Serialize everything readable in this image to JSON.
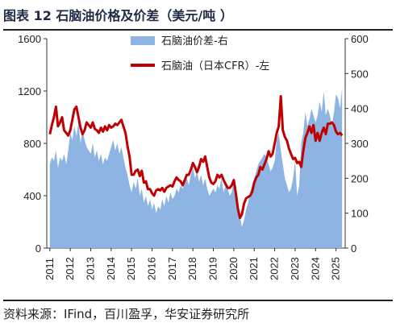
{
  "title": "图表 12 石脑油价格及价差（美元/吨 ）",
  "source": "资料来源：IFind，百川盈孚，华安证券研究所",
  "colors": {
    "price_line": "#c00000",
    "spread_area": "#8eb4e3"
  },
  "chart_data": {
    "type": "line+area",
    "x_tick_labels": [
      "2011",
      "2012",
      "2013",
      "2014",
      "2015",
      "2016",
      "2017",
      "2018",
      "2019",
      "2020",
      "2021",
      "2022",
      "2023",
      "2024",
      "2025"
    ],
    "left_axis": {
      "ticks": [
        0,
        400,
        800,
        1200,
        1600
      ],
      "range": [
        0,
        1600
      ]
    },
    "right_axis": {
      "ticks": [
        0,
        100,
        200,
        300,
        400,
        500,
        600
      ],
      "range": [
        0,
        600
      ]
    },
    "grid": false,
    "legend_position": "top-center",
    "series": [
      {
        "name": "石脑油价差-右",
        "kind": "area",
        "axis": "right",
        "x": [
          2011.0,
          2011.1,
          2011.2,
          2011.3,
          2011.4,
          2011.5,
          2011.6,
          2011.7,
          2011.8,
          2011.9,
          2012.0,
          2012.1,
          2012.2,
          2012.3,
          2012.4,
          2012.5,
          2012.6,
          2012.7,
          2012.8,
          2012.9,
          2013.0,
          2013.1,
          2013.2,
          2013.3,
          2013.4,
          2013.5,
          2013.6,
          2013.7,
          2013.8,
          2013.9,
          2014.0,
          2014.1,
          2014.2,
          2014.3,
          2014.4,
          2014.5,
          2014.6,
          2014.7,
          2014.8,
          2014.9,
          2015.0,
          2015.1,
          2015.2,
          2015.3,
          2015.4,
          2015.5,
          2015.6,
          2015.7,
          2015.8,
          2015.9,
          2016.0,
          2016.1,
          2016.2,
          2016.3,
          2016.4,
          2016.5,
          2016.6,
          2016.7,
          2016.8,
          2016.9,
          2017.0,
          2017.1,
          2017.2,
          2017.3,
          2017.4,
          2017.5,
          2017.6,
          2017.7,
          2017.8,
          2017.9,
          2018.0,
          2018.1,
          2018.2,
          2018.3,
          2018.4,
          2018.5,
          2018.6,
          2018.7,
          2018.8,
          2018.9,
          2019.0,
          2019.1,
          2019.2,
          2019.3,
          2019.4,
          2019.5,
          2019.6,
          2019.7,
          2019.8,
          2019.9,
          2020.0,
          2020.1,
          2020.2,
          2020.3,
          2020.4,
          2020.5,
          2020.6,
          2020.7,
          2020.8,
          2020.9,
          2021.0,
          2021.1,
          2021.2,
          2021.3,
          2021.4,
          2021.5,
          2021.6,
          2021.7,
          2021.8,
          2021.9,
          2022.0,
          2022.1,
          2022.2,
          2022.3,
          2022.4,
          2022.5,
          2022.6,
          2022.7,
          2022.8,
          2022.9,
          2023.0,
          2023.1,
          2023.2,
          2023.3,
          2023.4,
          2023.5,
          2023.6,
          2023.7,
          2023.8,
          2023.9,
          2024.0,
          2024.1,
          2024.2,
          2024.3,
          2024.4,
          2024.5,
          2024.6,
          2024.7,
          2024.8,
          2024.9,
          2025.0,
          2025.1,
          2025.2,
          2025.3
        ],
        "values": [
          240,
          260,
          250,
          280,
          230,
          260,
          250,
          270,
          240,
          280,
          330,
          310,
          350,
          320,
          360,
          300,
          340,
          310,
          290,
          280,
          270,
          300,
          260,
          280,
          250,
          270,
          240,
          260,
          250,
          270,
          290,
          310,
          280,
          300,
          270,
          290,
          260,
          230,
          210,
          180,
          160,
          190,
          170,
          200,
          150,
          170,
          130,
          150,
          120,
          140,
          110,
          130,
          100,
          120,
          110,
          140,
          120,
          150,
          130,
          160,
          140,
          150,
          170,
          160,
          180,
          170,
          190,
          200,
          180,
          210,
          230,
          200,
          220,
          190,
          210,
          180,
          200,
          170,
          150,
          160,
          170,
          160,
          180,
          170,
          200,
          160,
          180,
          170,
          150,
          160,
          200,
          140,
          130,
          90,
          60,
          80,
          110,
          130,
          160,
          180,
          200,
          220,
          240,
          250,
          260,
          270,
          260,
          240,
          220,
          230,
          250,
          310,
          330,
          280,
          240,
          200,
          180,
          160,
          170,
          200,
          250,
          150,
          180,
          300,
          330,
          390,
          350,
          370,
          400,
          380,
          360,
          380,
          420,
          390,
          450,
          380,
          400,
          380,
          350,
          390,
          440,
          430,
          400,
          460
        ]
      },
      {
        "name": "石脑油（日本CFR）-左",
        "kind": "line",
        "axis": "left",
        "x": [
          2011.0,
          2011.1,
          2011.2,
          2011.3,
          2011.4,
          2011.5,
          2011.6,
          2011.7,
          2011.8,
          2011.9,
          2012.0,
          2012.1,
          2012.2,
          2012.3,
          2012.4,
          2012.5,
          2012.6,
          2012.7,
          2012.8,
          2012.9,
          2013.0,
          2013.1,
          2013.2,
          2013.3,
          2013.4,
          2013.5,
          2013.6,
          2013.7,
          2013.8,
          2013.9,
          2014.0,
          2014.1,
          2014.2,
          2014.3,
          2014.4,
          2014.5,
          2014.6,
          2014.7,
          2014.8,
          2014.9,
          2015.0,
          2015.1,
          2015.2,
          2015.3,
          2015.4,
          2015.5,
          2015.6,
          2015.7,
          2015.8,
          2015.9,
          2016.0,
          2016.1,
          2016.2,
          2016.3,
          2016.4,
          2016.5,
          2016.6,
          2016.7,
          2016.8,
          2016.9,
          2017.0,
          2017.1,
          2017.2,
          2017.3,
          2017.4,
          2017.5,
          2017.6,
          2017.7,
          2017.8,
          2017.9,
          2018.0,
          2018.1,
          2018.2,
          2018.3,
          2018.4,
          2018.5,
          2018.6,
          2018.7,
          2018.8,
          2018.9,
          2019.0,
          2019.1,
          2019.2,
          2019.3,
          2019.4,
          2019.5,
          2019.6,
          2019.7,
          2019.8,
          2019.9,
          2020.0,
          2020.1,
          2020.2,
          2020.3,
          2020.4,
          2020.5,
          2020.6,
          2020.7,
          2020.8,
          2020.9,
          2021.0,
          2021.1,
          2021.2,
          2021.3,
          2021.4,
          2021.5,
          2021.6,
          2021.7,
          2021.8,
          2021.9,
          2022.0,
          2022.1,
          2022.2,
          2022.3,
          2022.4,
          2022.5,
          2022.6,
          2022.7,
          2022.8,
          2022.9,
          2023.0,
          2023.1,
          2023.2,
          2023.3,
          2023.4,
          2023.5,
          2023.6,
          2023.7,
          2023.8,
          2023.9,
          2024.0,
          2024.1,
          2024.2,
          2024.3,
          2024.4,
          2024.5,
          2024.6,
          2024.7,
          2024.8,
          2024.9,
          2025.0,
          2025.1,
          2025.2,
          2025.3
        ],
        "values": [
          870,
          940,
          1000,
          1080,
          930,
          960,
          1000,
          900,
          880,
          860,
          900,
          980,
          1060,
          1080,
          1000,
          920,
          870,
          900,
          960,
          940,
          920,
          960,
          910,
          900,
          880,
          920,
          890,
          930,
          900,
          940,
          920,
          930,
          950,
          940,
          960,
          980,
          930,
          880,
          780,
          700,
          560,
          560,
          590,
          600,
          550,
          590,
          500,
          510,
          450,
          450,
          420,
          400,
          440,
          450,
          440,
          460,
          430,
          460,
          470,
          480,
          470,
          510,
          540,
          520,
          510,
          480,
          520,
          560,
          560,
          600,
          650,
          620,
          580,
          620,
          680,
          660,
          700,
          620,
          540,
          500,
          490,
          510,
          560,
          540,
          560,
          520,
          490,
          460,
          460,
          480,
          520,
          420,
          300,
          230,
          260,
          340,
          380,
          390,
          400,
          430,
          500,
          540,
          560,
          620,
          600,
          640,
          680,
          740,
          700,
          720,
          800,
          880,
          930,
          1160,
          900,
          850,
          820,
          760,
          720,
          680,
          690,
          650,
          660,
          620,
          740,
          840,
          880,
          930,
          880,
          940,
          820,
          880,
          820,
          880,
          920,
          870,
          950,
          950,
          960,
          940,
          890,
          870,
          880,
          860
        ]
      }
    ]
  }
}
